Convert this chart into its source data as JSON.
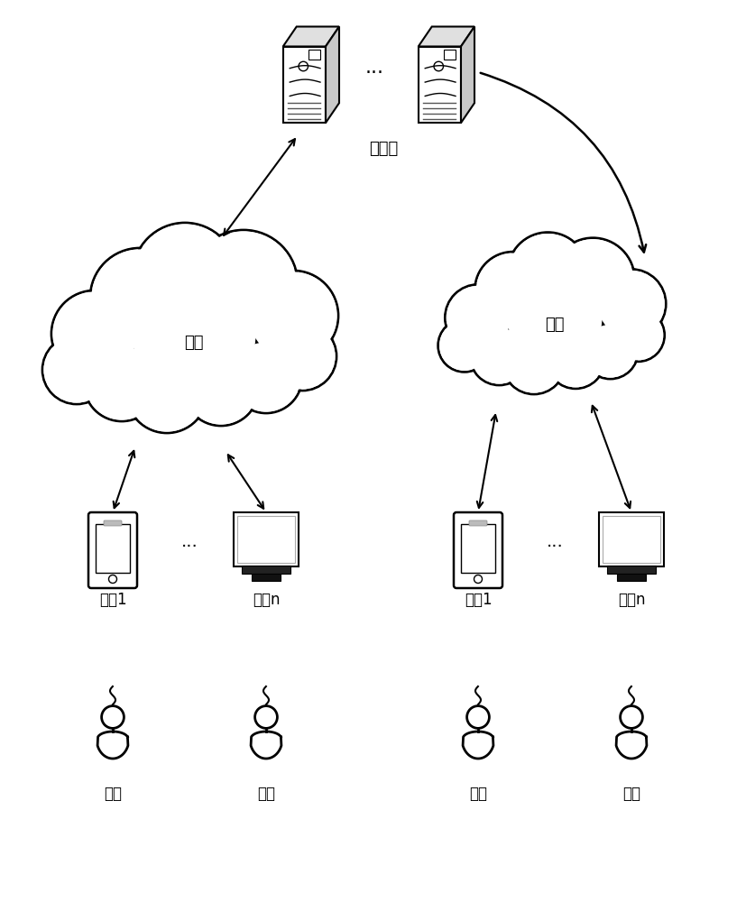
{
  "background_color": "#ffffff",
  "server_label": "服务器",
  "network_label": "网络",
  "terminal1_label": "终端1",
  "terminaln_label": "终竭n",
  "user_label": "用户",
  "dots": "...",
  "font_size": 13,
  "label_font_size": 12,
  "fig_width": 8.27,
  "fig_height": 10.0,
  "dpi": 100
}
